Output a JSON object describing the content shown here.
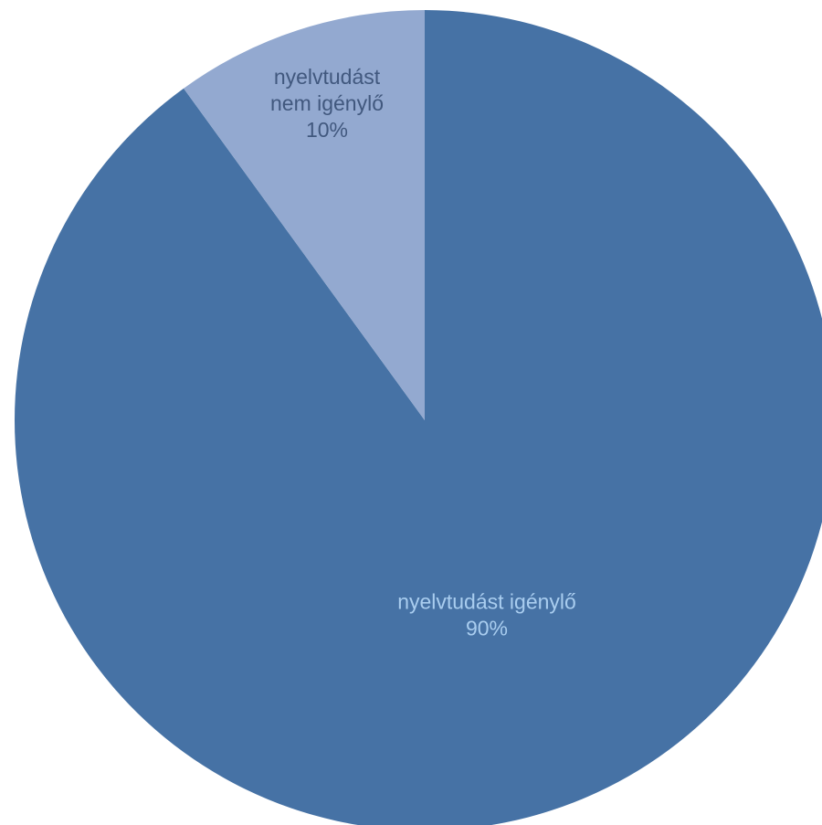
{
  "chart_data": {
    "type": "pie",
    "title": "",
    "start_angle_deg": 0,
    "direction": "clockwise",
    "legend": "none",
    "slices": [
      {
        "label_lines": [
          "nyelvtudást igénylő",
          "90%"
        ],
        "value": 90,
        "color": "#4672a5",
        "label_color": "#a9cdef"
      },
      {
        "label_lines": [
          "nyelvtudást",
          "nem igénylő",
          "10%"
        ],
        "value": 10,
        "color": "#93a9d0",
        "label_color": "#41587e"
      }
    ]
  }
}
